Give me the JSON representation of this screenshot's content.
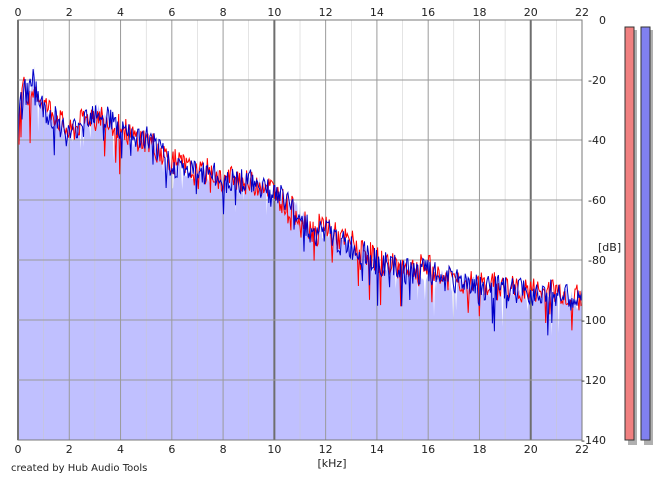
{
  "credit": "created by Hub Audio Tools",
  "colors": {
    "background": "#ffffff",
    "plot_background": "#ffffff",
    "fill": "#c0c0ff",
    "grid_major": "#9a9a9a",
    "grid_minor": "#c8c8c8",
    "left_channel": "#ff0000",
    "right_channel": "#0000c8",
    "meter_left": "#f08080",
    "meter_right": "#8080f0",
    "meter_shadow": "#b0b0b0"
  },
  "chart_data": {
    "type": "area",
    "title": "",
    "xlabel": "[kHz]",
    "ylabel": "[dB]",
    "xlim": [
      0,
      22
    ],
    "ylim": [
      -140,
      0
    ],
    "x_ticks": [
      0,
      2,
      4,
      6,
      8,
      10,
      12,
      14,
      16,
      18,
      20,
      22
    ],
    "y_ticks": [
      0,
      -20,
      -40,
      -60,
      -80,
      -100,
      -120,
      -140
    ],
    "grid": true,
    "x_tick_labels_top_and_bottom": true,
    "y_tick_labels_side": "right",
    "level_meters": [
      {
        "channel": "left",
        "color": "#f08080"
      },
      {
        "channel": "right",
        "color": "#8080f0"
      }
    ],
    "series": [
      {
        "channel": "left",
        "color": "#ff0000",
        "x": [
          0,
          0.2,
          0.4,
          0.6,
          0.8,
          1,
          1.5,
          2,
          2.5,
          3,
          3.5,
          4,
          4.5,
          5,
          5.5,
          6,
          6.5,
          7,
          7.5,
          8,
          8.5,
          9,
          9.5,
          10,
          10.5,
          11,
          11.5,
          12,
          12.5,
          13,
          13.5,
          14,
          14.5,
          15,
          15.5,
          16,
          16.5,
          17,
          17.5,
          18,
          18.5,
          19,
          19.5,
          20,
          20.5,
          21,
          21.5,
          22
        ],
        "values": [
          -34,
          -22,
          -28,
          -21,
          -25,
          -28,
          -32,
          -38,
          -34,
          -31,
          -33,
          -36,
          -39,
          -40,
          -43,
          -47,
          -49,
          -52,
          -50,
          -54,
          -52,
          -55,
          -54,
          -57,
          -62,
          -65,
          -70,
          -68,
          -73,
          -74,
          -77,
          -80,
          -82,
          -82,
          -83,
          -82,
          -86,
          -86,
          -88,
          -88,
          -88,
          -89,
          -90,
          -90,
          -91,
          -90,
          -92,
          -93
        ]
      },
      {
        "channel": "right",
        "color": "#0000c8",
        "x": [
          0,
          0.2,
          0.4,
          0.6,
          0.8,
          1,
          1.5,
          2,
          2.5,
          3,
          3.5,
          4,
          4.5,
          5,
          5.5,
          6,
          6.5,
          7,
          7.5,
          8,
          8.5,
          9,
          9.5,
          10,
          10.5,
          11,
          11.5,
          12,
          12.5,
          13,
          13.5,
          14,
          14.5,
          15,
          15.5,
          16,
          16.5,
          17,
          17.5,
          18,
          18.5,
          19,
          19.5,
          20,
          20.5,
          21,
          21.5,
          22
        ],
        "values": [
          -36,
          -20,
          -27,
          -17,
          -26,
          -30,
          -33,
          -39,
          -33,
          -30,
          -32,
          -37,
          -40,
          -39,
          -44,
          -48,
          -50,
          -51,
          -51,
          -54,
          -53,
          -54,
          -55,
          -58,
          -60,
          -64,
          -72,
          -70,
          -74,
          -76,
          -78,
          -81,
          -82,
          -84,
          -84,
          -84,
          -86,
          -87,
          -87,
          -89,
          -89,
          -90,
          -90,
          -91,
          -90,
          -91,
          -93,
          -94
        ]
      }
    ]
  }
}
